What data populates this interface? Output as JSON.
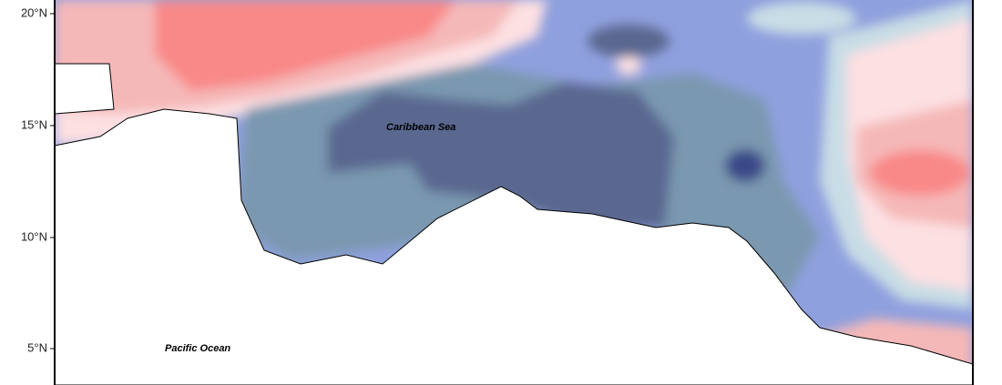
{
  "latitude_labels": [
    "20°N",
    "15°N",
    "10°N",
    "5°N"
  ],
  "place_labels": {
    "caribbean": "Caribbean Sea",
    "pacific": "Pacific Ocean"
  }
}
